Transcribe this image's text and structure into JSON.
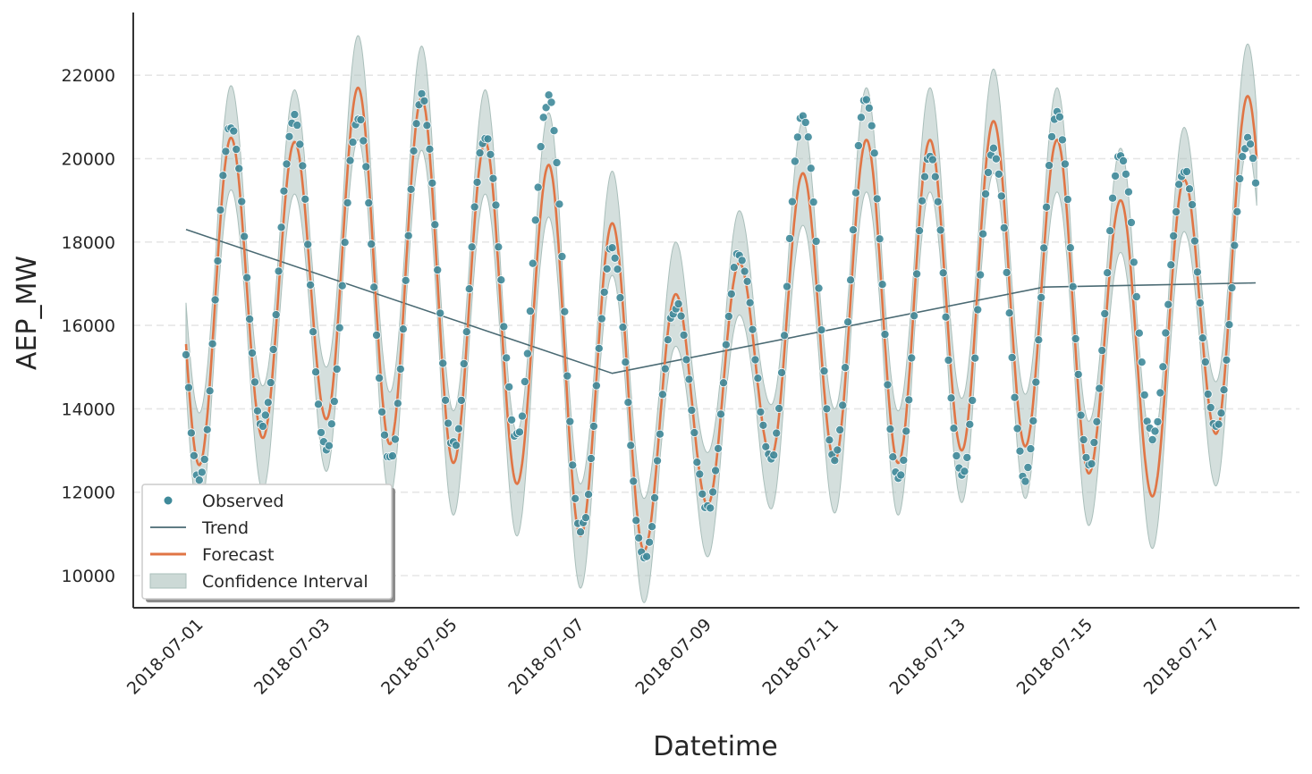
{
  "chart_data": {
    "type": "line",
    "title": "",
    "xlabel": "Datetime",
    "ylabel": "AEP_MW",
    "x_range": [
      "2018-07-01",
      "2018-07-17"
    ],
    "x_tick_labels": [
      "2018-07-01",
      "2018-07-03",
      "2018-07-05",
      "2018-07-07",
      "2018-07-09",
      "2018-07-11",
      "2018-07-13",
      "2018-07-15",
      "2018-07-17"
    ],
    "y_tick_labels": [
      "10000",
      "12000",
      "14000",
      "16000",
      "18000",
      "20000",
      "22000"
    ],
    "ylim": [
      9200,
      23500
    ],
    "grid": "horizontal dashed",
    "legend_placement": "bottom-left",
    "legend": [
      "Observed",
      "Trend",
      "Forecast",
      "Confidence Interval"
    ],
    "daily_pattern": {
      "dates": [
        "2018-07-01",
        "2018-07-02",
        "2018-07-03",
        "2018-07-04",
        "2018-07-05",
        "2018-07-06",
        "2018-07-07",
        "2018-07-08",
        "2018-07-09",
        "2018-07-10",
        "2018-07-11",
        "2018-07-12",
        "2018-07-13",
        "2018-07-14",
        "2018-07-15",
        "2018-07-16",
        "2018-07-17"
      ],
      "forecast_peak": [
        20500,
        20400,
        21700,
        21450,
        20400,
        19850,
        18450,
        16750,
        17500,
        19650,
        20450,
        20450,
        20900,
        20450,
        19000,
        19500,
        21500
      ],
      "forecast_trough": [
        12650,
        13300,
        13750,
        13150,
        12700,
        12200,
        10950,
        10600,
        11700,
        12850,
        12750,
        12700,
        13000,
        13100,
        12450,
        11900,
        13400
      ],
      "observed_peak": [
        20750,
        20950,
        21050,
        21450,
        20600,
        21450,
        17850,
        16500,
        17700,
        21050,
        21450,
        20150,
        20200,
        21050,
        20100,
        19700,
        20450
      ],
      "observed_trough": [
        12300,
        13600,
        13000,
        12800,
        13100,
        13350,
        11050,
        10350,
        11600,
        12800,
        12800,
        12300,
        12350,
        12350,
        12600,
        13350,
        13500
      ]
    },
    "series": [
      {
        "name": "Trend",
        "x": [
          "2018-07-01",
          "2018-07-07 17:00",
          "2018-07-14 12:00",
          "2018-07-17 20:00"
        ],
        "y": [
          18300,
          14850,
          16920,
          17020
        ],
        "color": "#4a6a73"
      },
      {
        "name": "Forecast",
        "color": "#e07545"
      },
      {
        "name": "Observed",
        "color": "#3f8a9a"
      },
      {
        "name": "Confidence Interval",
        "color": "#a9bdb9"
      }
    ]
  },
  "colors": {
    "observed": "#3f8a9a",
    "trend": "#4a6a73",
    "forecast": "#e07545",
    "ci_fill": "#aabfbb",
    "grid": "#e6e6e6",
    "axis": "#333333"
  }
}
